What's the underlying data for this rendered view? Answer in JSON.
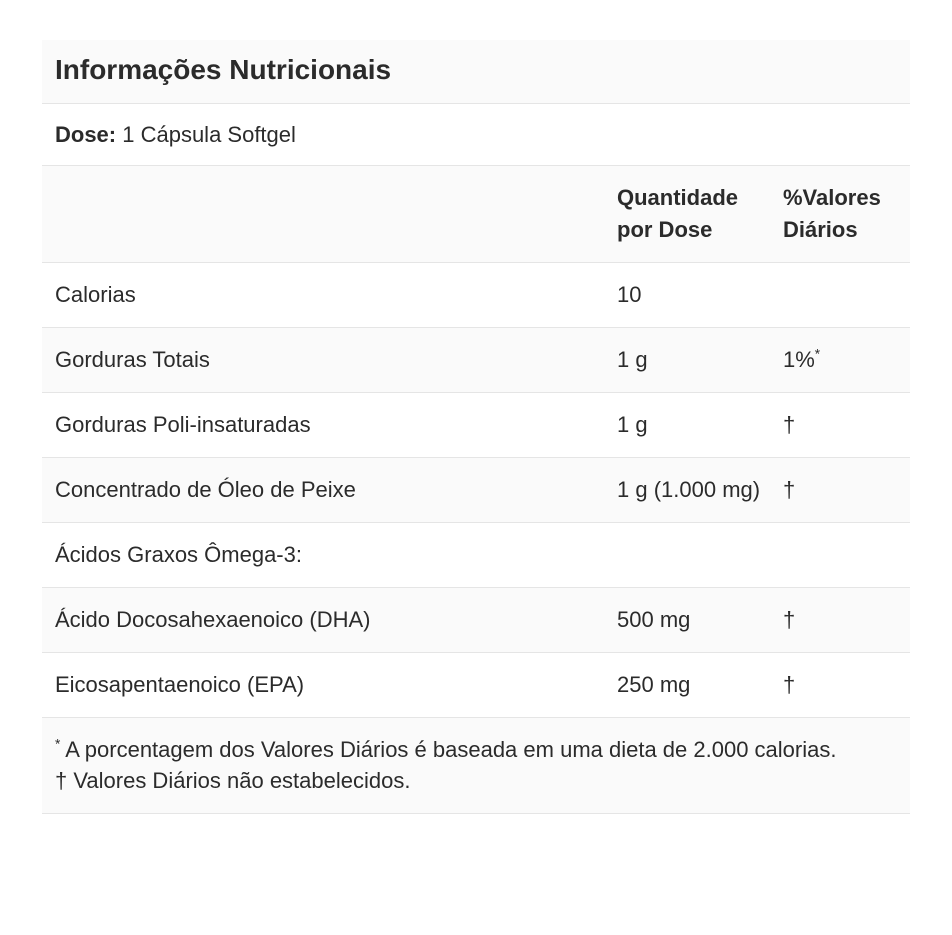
{
  "label": {
    "title": "Informações Nutricionais",
    "dose": {
      "label": "Dose:",
      "value": " 1 Cápsula Softgel"
    },
    "columns": {
      "name": "",
      "amount": "Quantidade por Dose",
      "daily": "%Valores Diários"
    },
    "rows": [
      {
        "name": "Calorias",
        "amount": "10",
        "daily": "",
        "daily_sup": "",
        "section": false
      },
      {
        "name": "Gorduras Totais",
        "amount": "1 g",
        "daily": "1%",
        "daily_sup": "*",
        "section": false
      },
      {
        "name": "Gorduras Poli-insaturadas",
        "amount": "1 g",
        "daily": "†",
        "daily_sup": "",
        "section": false
      },
      {
        "name": "Concentrado de Óleo de Peixe",
        "amount": "1 g (1.000 mg)",
        "daily": "†",
        "daily_sup": "",
        "section": false
      },
      {
        "name": "Ácidos Graxos Ômega-3:",
        "amount": "",
        "daily": "",
        "daily_sup": "",
        "section": true
      },
      {
        "name": "Ácido Docosahexaenoico (DHA)",
        "amount": "500 mg",
        "daily": "†",
        "daily_sup": "",
        "section": false
      },
      {
        "name": "Eicosapentaenoico (EPA)",
        "amount": "250 mg",
        "daily": "†",
        "daily_sup": "",
        "section": false
      }
    ],
    "footnotes": [
      {
        "marker": "*",
        "superscript": true,
        "text": " A porcentagem dos Valores Diários é baseada em uma dieta de 2.000 calorias."
      },
      {
        "marker": "†",
        "superscript": false,
        "text": " Valores Diários não estabelecidos."
      }
    ]
  },
  "colors": {
    "text": "#2b2b2b",
    "stripe": "#fafafa",
    "border": "#e5e5e5",
    "background": "#ffffff"
  }
}
